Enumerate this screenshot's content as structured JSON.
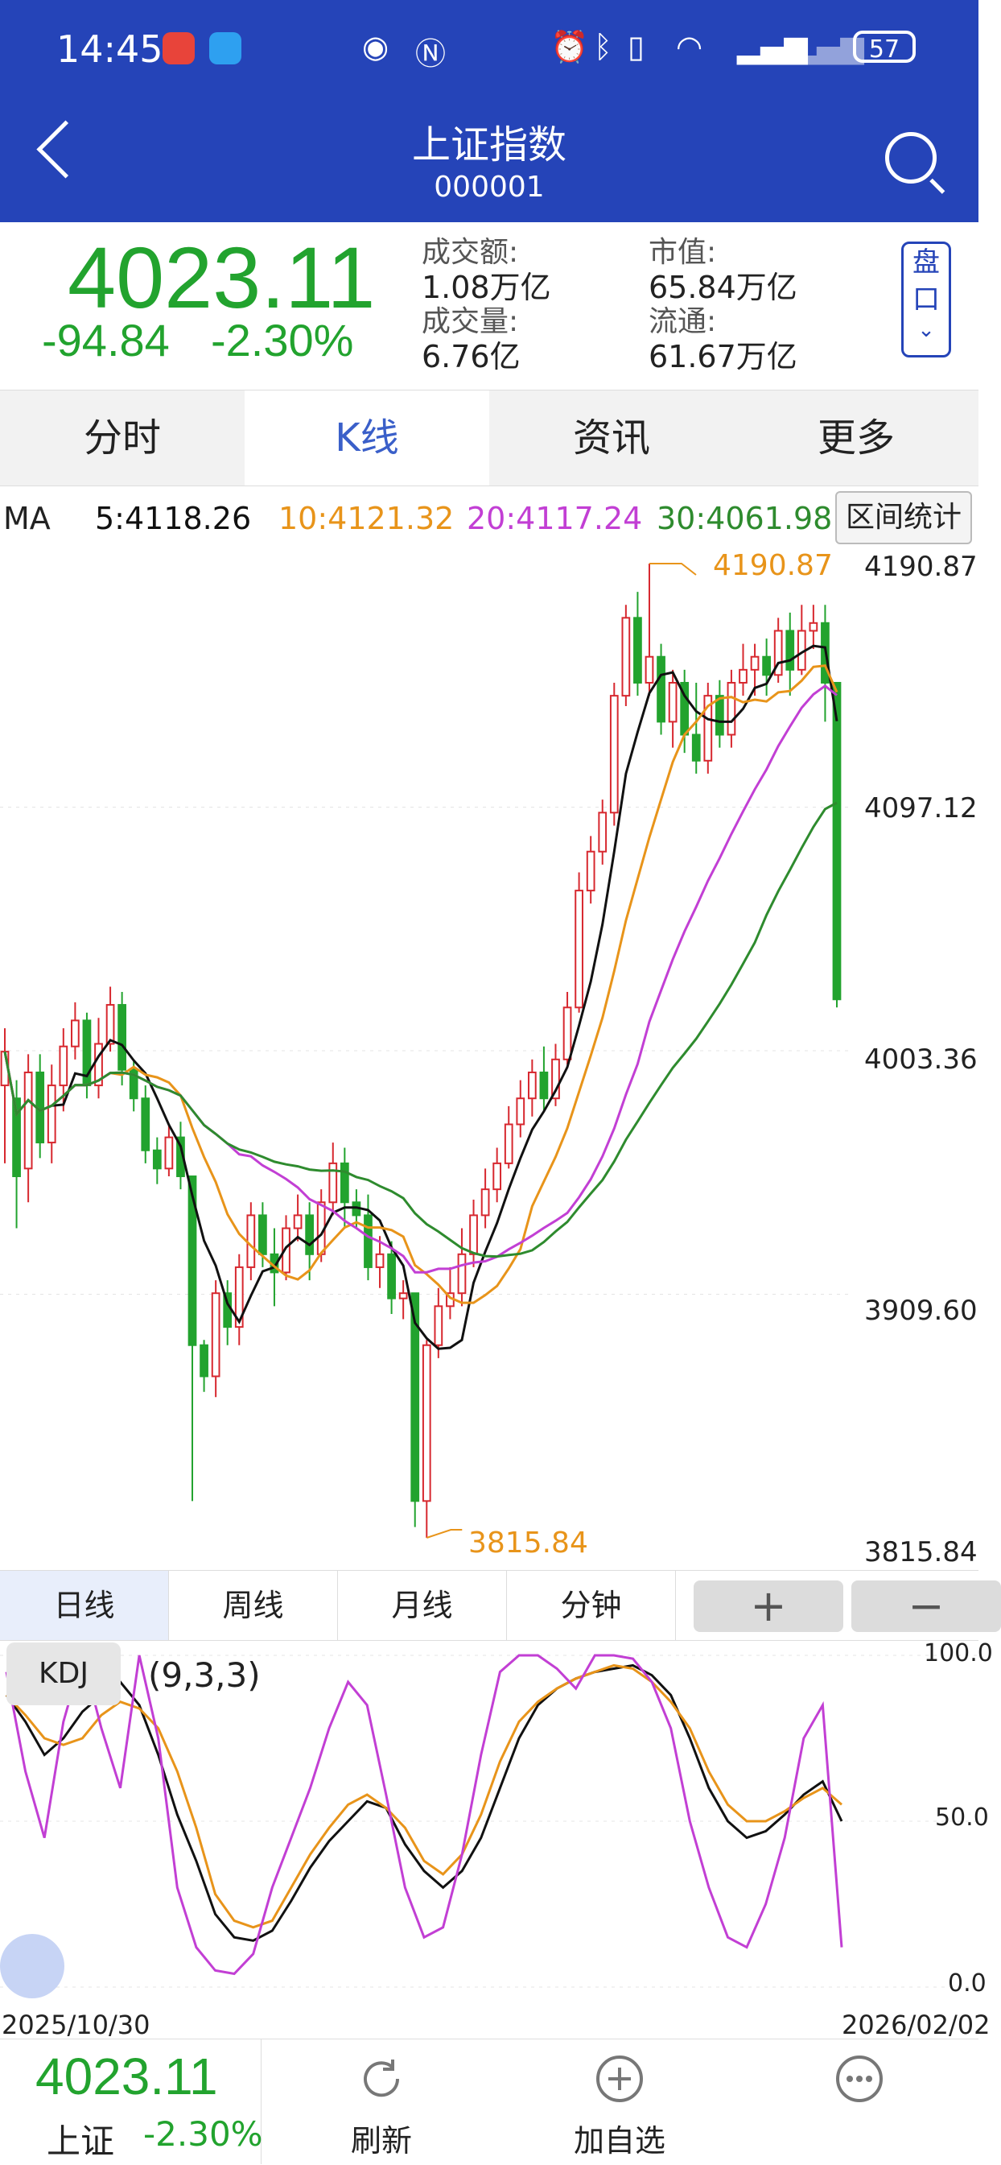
{
  "status_bar": {
    "time": "14:45",
    "battery": "57"
  },
  "header": {
    "title": "上证指数",
    "code": "000001"
  },
  "quote": {
    "price": "4023.11",
    "change": "-94.84",
    "change_pct": "-2.30%",
    "stats": [
      {
        "label": "成交额:",
        "value": "1.08万亿"
      },
      {
        "label": "市值:",
        "value": "65.84万亿"
      },
      {
        "label": "成交量:",
        "value": "6.76亿"
      },
      {
        "label": "流通:",
        "value": "61.67万亿"
      }
    ],
    "pankou": [
      "盘",
      "口"
    ]
  },
  "tabs": [
    "分时",
    "K线",
    "资讯",
    "更多"
  ],
  "active_tab": "K线",
  "ma": {
    "label": "MA",
    "ma5": "5:4118.26",
    "ma10": "10:4121.32",
    "ma20": "20:4117.24",
    "ma30": "30:4061.98",
    "button": "区间统计"
  },
  "kline": {
    "y_ticks": [
      "4190.87",
      "4097.12",
      "4003.36",
      "3909.60",
      "3815.84"
    ],
    "high_label": "4190.87",
    "low_label": "3815.84"
  },
  "periods": [
    "日线",
    "周线",
    "月线",
    "分钟"
  ],
  "period_buttons": [
    "+",
    "−"
  ],
  "kdj": {
    "label": "KDJ",
    "params": "(9,3,3)",
    "y_ticks": [
      "100.0",
      "50.0",
      "0.0"
    ]
  },
  "dates": {
    "start": "2025/10/30",
    "end": "2026/02/02"
  },
  "bottom": {
    "price": "4023.11",
    "name": "上证",
    "pct": "-2.30%",
    "refresh": "刷新",
    "add": "加自选"
  },
  "colors": {
    "up": "#d7282f",
    "down": "#22a32e",
    "ma5": "#111111",
    "ma10": "#e8941a",
    "ma20": "#c23fd4",
    "ma30": "#2e8b2e",
    "header": "#2544b8",
    "accent": "#3a5fc9"
  },
  "chart_data": [
    {
      "type": "candlestick",
      "title": "",
      "x_range": [
        "2025/10/30",
        "2026/02/02"
      ],
      "ylim": [
        3815.84,
        4190.87
      ],
      "series": [
        {
          "name": "5:4118.26"
        },
        {
          "name": "10:4121.32"
        },
        {
          "name": "20:4117.24"
        },
        {
          "name": "30:4061.98"
        }
      ],
      "candles_ohlc": [
        [
          3990,
          4003,
          3960,
          4012
        ],
        [
          3985,
          3955,
          3935,
          3992
        ],
        [
          3958,
          3995,
          3945,
          4002
        ],
        [
          3995,
          3968,
          3962,
          4002
        ],
        [
          3968,
          3990,
          3960,
          3998
        ],
        [
          3990,
          4005,
          3980,
          4012
        ],
        [
          4005,
          4015,
          4000,
          4022
        ],
        [
          4015,
          3990,
          3985,
          4018
        ],
        [
          3990,
          4006,
          3985,
          4016
        ],
        [
          4006,
          4021,
          4003,
          4028
        ],
        [
          4021,
          3996,
          3990,
          4026
        ],
        [
          3996,
          3985,
          3980,
          4000
        ],
        [
          3985,
          3965,
          3960,
          3990
        ],
        [
          3965,
          3958,
          3952,
          3970
        ],
        [
          3958,
          3970,
          3955,
          3975
        ],
        [
          3970,
          3955,
          3950,
          3976
        ],
        [
          3955,
          3890,
          3830,
          3955
        ],
        [
          3890,
          3878,
          3872,
          3892
        ],
        [
          3878,
          3910,
          3870,
          3915
        ],
        [
          3910,
          3897,
          3890,
          3915
        ],
        [
          3897,
          3920,
          3890,
          3925
        ],
        [
          3920,
          3940,
          3915,
          3945
        ],
        [
          3940,
          3925,
          3920,
          3945
        ],
        [
          3925,
          3918,
          3905,
          3935
        ],
        [
          3918,
          3935,
          3915,
          3940
        ],
        [
          3935,
          3940,
          3930,
          3948
        ],
        [
          3940,
          3925,
          3915,
          3945
        ],
        [
          3925,
          3945,
          3922,
          3950
        ],
        [
          3945,
          3960,
          3940,
          3968
        ],
        [
          3960,
          3945,
          3935,
          3966
        ],
        [
          3945,
          3940,
          3935,
          3950
        ],
        [
          3940,
          3920,
          3915,
          3948
        ],
        [
          3920,
          3925,
          3912,
          3932
        ],
        [
          3925,
          3908,
          3902,
          3930
        ],
        [
          3908,
          3910,
          3900,
          3915
        ],
        [
          3910,
          3830,
          3820,
          3910
        ],
        [
          3830,
          3890,
          3815.84,
          3892
        ],
        [
          3890,
          3905,
          3885,
          3912
        ],
        [
          3905,
          3910,
          3900,
          3920
        ],
        [
          3910,
          3925,
          3905,
          3935
        ],
        [
          3925,
          3940,
          3920,
          3946
        ],
        [
          3940,
          3950,
          3935,
          3958
        ],
        [
          3950,
          3960,
          3945,
          3966
        ],
        [
          3960,
          3975,
          3958,
          3982
        ],
        [
          3975,
          3985,
          3970,
          3992
        ],
        [
          3985,
          3995,
          3978,
          4000
        ],
        [
          3995,
          3985,
          3980,
          4005
        ],
        [
          3985,
          4000,
          3982,
          4006
        ],
        [
          4000,
          4020,
          3998,
          4026
        ],
        [
          4020,
          4065,
          4018,
          4072
        ],
        [
          4065,
          4080,
          4060,
          4086
        ],
        [
          4080,
          4095,
          4075,
          4100
        ],
        [
          4095,
          4140,
          4090,
          4145
        ],
        [
          4140,
          4170,
          4136,
          4175
        ],
        [
          4170,
          4145,
          4140,
          4180
        ],
        [
          4145,
          4155,
          4140,
          4190.87
        ],
        [
          4155,
          4130,
          4125,
          4160
        ],
        [
          4130,
          4145,
          4120,
          4150
        ],
        [
          4145,
          4125,
          4118,
          4150
        ],
        [
          4125,
          4115,
          4110,
          4145
        ],
        [
          4115,
          4140,
          4110,
          4145
        ],
        [
          4140,
          4125,
          4120,
          4146
        ],
        [
          4125,
          4145,
          4120,
          4150
        ],
        [
          4145,
          4150,
          4140,
          4160
        ],
        [
          4150,
          4155,
          4140,
          4160
        ],
        [
          4155,
          4148,
          4140,
          4162
        ],
        [
          4148,
          4165,
          4145,
          4170
        ],
        [
          4165,
          4150,
          4140,
          4172
        ],
        [
          4150,
          4165,
          4148,
          4175
        ],
        [
          4165,
          4168,
          4158,
          4175
        ],
        [
          4168,
          4145,
          4130,
          4175
        ],
        [
          4145,
          4023.11,
          4020,
          4145
        ]
      ]
    },
    {
      "type": "line",
      "title": "",
      "ylim": [
        0,
        100
      ],
      "series": [
        {
          "values": [
            88,
            80,
            70,
            75,
            83,
            88,
            92,
            85,
            70,
            52,
            38,
            22,
            15,
            14,
            17,
            26,
            36,
            44,
            50,
            56,
            54,
            43,
            35,
            30,
            35,
            45,
            60,
            75,
            85,
            90,
            93,
            95,
            96,
            97,
            94,
            88,
            75,
            60,
            50,
            45,
            47,
            52,
            58,
            62,
            50
          ]
        },
        {
          "values": [
            88,
            82,
            75,
            73,
            75,
            82,
            86,
            84,
            78,
            65,
            48,
            28,
            20,
            18,
            20,
            30,
            40,
            48,
            55,
            58,
            54,
            48,
            38,
            34,
            40,
            52,
            68,
            80,
            86,
            90,
            93,
            95,
            97,
            96,
            92,
            86,
            78,
            65,
            55,
            50,
            50,
            53,
            57,
            60,
            55
          ]
        },
        {
          "values": [
            95,
            65,
            45,
            80,
            100,
            78,
            60,
            100,
            75,
            30,
            12,
            5,
            4,
            10,
            30,
            45,
            60,
            78,
            92,
            85,
            58,
            30,
            15,
            18,
            40,
            70,
            95,
            100,
            100,
            96,
            90,
            100,
            100,
            99,
            92,
            78,
            50,
            30,
            15,
            12,
            25,
            45,
            75,
            85,
            12
          ]
        }
      ]
    }
  ]
}
